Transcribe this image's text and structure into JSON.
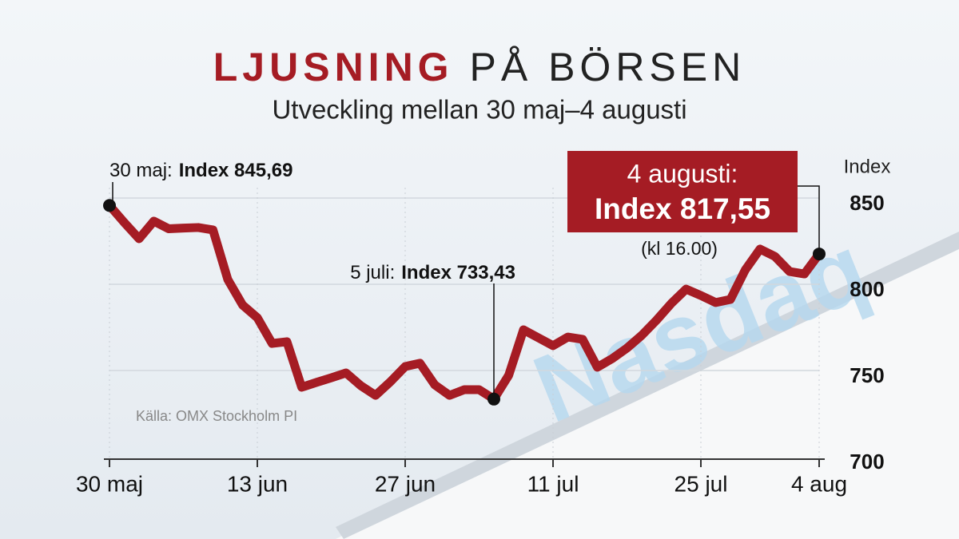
{
  "chart_data": {
    "type": "line",
    "title": {
      "bold": "LJUSNING",
      "rest": "PÅ BÖRSEN"
    },
    "subtitle": "Utveckling mellan 30 maj–4 augusti",
    "y_axis_label": "Index",
    "source": "Källa: OMX Stockholm PI",
    "background_sign": "Nasdaq",
    "categories": [
      "30 maj",
      null,
      null,
      null,
      null,
      null,
      null,
      null,
      null,
      null,
      "13 jun",
      null,
      null,
      null,
      null,
      null,
      null,
      null,
      null,
      null,
      "27 jun",
      null,
      null,
      null,
      null,
      null,
      null,
      null,
      null,
      null,
      "11 jul",
      null,
      null,
      null,
      null,
      null,
      null,
      null,
      null,
      null,
      "25 jul",
      null,
      null,
      null,
      null,
      null,
      null,
      null,
      "4 aug"
    ],
    "series": [
      {
        "name": "OMX Stockholm PI",
        "color": "#a51c24",
        "values": [
          845.69,
          835.8,
          826.4,
          836.6,
          832.2,
          832.6,
          832.9,
          831.5,
          802.8,
          788.0,
          780.6,
          765.7,
          766.7,
          740.3,
          743.1,
          745.8,
          748.6,
          741.2,
          735.6,
          743.5,
          752.3,
          754.2,
          741.7,
          735.6,
          738.9,
          738.9,
          733.43,
          747.2,
          773.6,
          769.0,
          764.4,
          769.4,
          768.1,
          751.9,
          756.9,
          763.0,
          770.4,
          779.2,
          788.9,
          797.2,
          793.5,
          789.4,
          791.2,
          808.3,
          820.4,
          816.2,
          807.4,
          806.0,
          817.55
        ]
      }
    ],
    "ylim": [
      700,
      850
    ],
    "yticks": [
      700,
      750,
      800,
      850
    ],
    "grid": true,
    "annotations": [
      {
        "label": "30 maj:",
        "text": "Index 845,69",
        "point": 0
      },
      {
        "label": "5 juli:",
        "text": "Index 733,43",
        "point": 26
      },
      {
        "label": "4 augusti:",
        "text": "Index 817,55",
        "note": "(kl 16.00)",
        "point": 48
      }
    ]
  }
}
